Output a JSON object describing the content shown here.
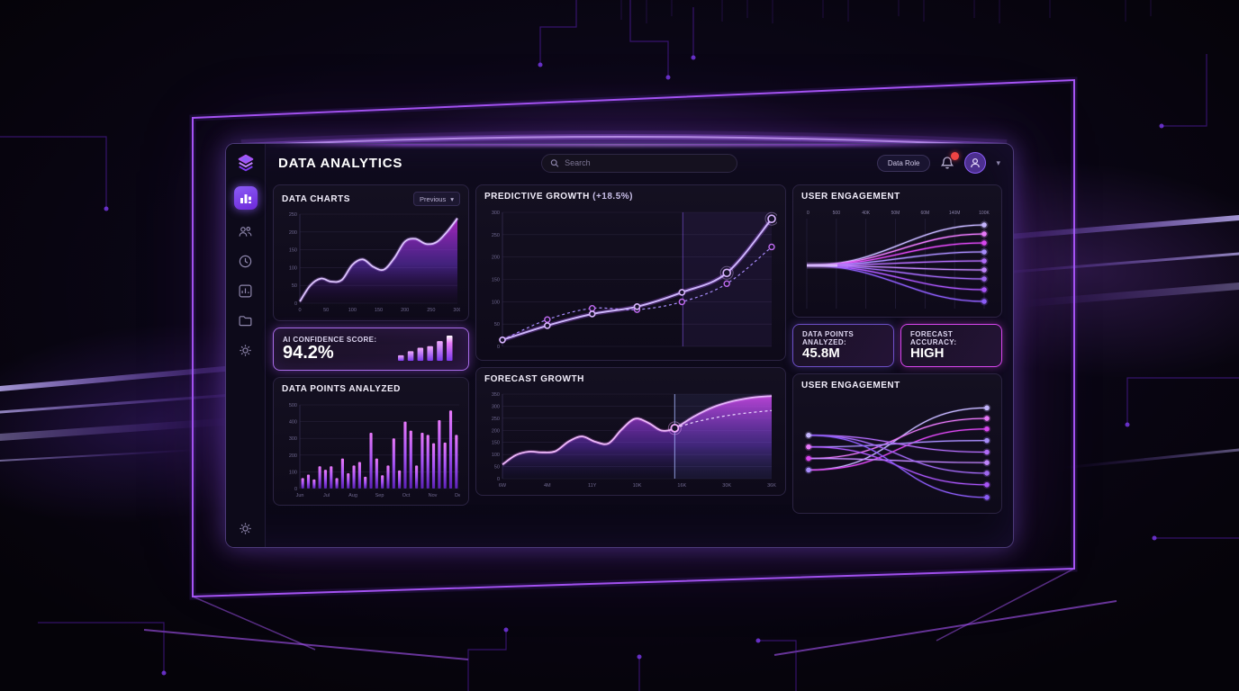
{
  "app": {
    "title": "DATA ANALYTICS"
  },
  "header": {
    "search_placeholder": "Search",
    "role_button_label": "Data Role",
    "icons": [
      "bell-icon",
      "avatar",
      "chevron-down-icon"
    ]
  },
  "sidebar": {
    "items": [
      {
        "name": "logo",
        "icon": "layers-logo-icon"
      },
      {
        "name": "dashboard",
        "icon": "bar-chart-icon",
        "active": true
      },
      {
        "name": "users",
        "icon": "users-icon"
      },
      {
        "name": "history",
        "icon": "clock-icon"
      },
      {
        "name": "reports",
        "icon": "chart-box-icon"
      },
      {
        "name": "files",
        "icon": "folder-icon"
      },
      {
        "name": "preferences",
        "icon": "gear-icon"
      },
      {
        "name": "settings",
        "icon": "gear-icon"
      }
    ]
  },
  "panels": {
    "data_charts": {
      "title": "DATA CHARTS",
      "dropdown_label": "Previous"
    },
    "ai_confidence": {
      "label": "AI CONFIDENCE SCORE:",
      "value": "94.2%"
    },
    "data_points_bar": {
      "title": "DATA POINTS ANALYZED"
    },
    "predictive": {
      "title": "PREDICTIVE GROWTH",
      "delta": "(+18.5%)"
    },
    "forecast": {
      "title": "FORECAST GROWTH"
    },
    "engagement_top": {
      "title": "USER ENGAGEMENT"
    },
    "stat_points": {
      "label": "DATA POINTS ANALYZED:",
      "value": "45.8M"
    },
    "stat_accuracy": {
      "label": "FORECAST ACCURACY:",
      "value": "HIGH"
    },
    "engagement_bottom": {
      "title": "USER ENGAGEMENT"
    }
  },
  "colors": {
    "accent": "#a855f7",
    "accent_light": "#c084fc",
    "magenta": "#d946ef",
    "violet": "#7c3aed",
    "grid": "#262038",
    "tick_text": "#6f6890",
    "badge_red": "#ef4444"
  },
  "chart_data": [
    {
      "id": "data_charts",
      "type": "area",
      "title": "DATA CHARTS",
      "y_ticks": [
        "250",
        "200",
        "150",
        "100",
        "50",
        "0"
      ],
      "x_ticks": [
        "0",
        "50",
        "100",
        "150",
        "200",
        "250",
        "300"
      ],
      "ylim": [
        0,
        260
      ],
      "values": [
        5,
        52,
        72,
        63,
        68,
        112,
        128,
        106,
        98,
        132,
        180,
        188,
        173,
        178,
        208,
        248
      ]
    },
    {
      "id": "confidence_bars",
      "type": "minibars",
      "values": [
        22,
        38,
        52,
        58,
        78,
        100
      ]
    },
    {
      "id": "points_bars",
      "type": "bar",
      "title": "DATA POINTS ANALYZED",
      "categories": [
        "Jun",
        "Jul",
        "Aug",
        "Sep",
        "Oct",
        "Nov",
        "Dec"
      ],
      "y_ticks": [
        "500",
        "400",
        "300",
        "200",
        "100",
        "0"
      ],
      "ylim": [
        0,
        600
      ],
      "values": [
        75,
        100,
        65,
        160,
        135,
        160,
        75,
        215,
        110,
        165,
        190,
        85,
        400,
        215,
        95,
        165,
        360,
        130,
        480,
        415,
        165,
        400,
        385,
        325,
        490,
        330,
        560,
        385
      ]
    },
    {
      "id": "predictive",
      "type": "line",
      "title": "PREDICTIVE GROWTH (+18.5%)",
      "y_ticks": [
        "300",
        "250",
        "200",
        "150",
        "100",
        "50",
        "0"
      ],
      "ylim": [
        0,
        310
      ],
      "divider_x": 0.67,
      "series": [
        {
          "name": "actual",
          "style": "solid",
          "values": [
            15,
            48,
            75,
            92,
            125,
            170,
            295
          ]
        },
        {
          "name": "projected",
          "style": "dashed",
          "values": [
            15,
            62,
            88,
            85,
            103,
            145,
            230
          ]
        }
      ]
    },
    {
      "id": "forecast",
      "type": "area_forecast",
      "title": "FORECAST GROWTH",
      "y_ticks": [
        "350",
        "300",
        "250",
        "200",
        "150",
        "100",
        "50",
        "0"
      ],
      "x_labels": [
        "6W",
        "4M",
        "11Y",
        "10K",
        "16K",
        "30K",
        "36K"
      ],
      "ylim": [
        0,
        360
      ],
      "divider_x": 0.64,
      "history": [
        60,
        100,
        115,
        112,
        117,
        158,
        180,
        157,
        150,
        210,
        255,
        238,
        205,
        215
      ],
      "forecast_area": [
        215,
        265,
        305,
        330,
        345,
        352
      ],
      "forecast_line": [
        215,
        240,
        258,
        272,
        282,
        290
      ]
    },
    {
      "id": "fan",
      "type": "fan",
      "title": "USER ENGAGEMENT",
      "x_labels": [
        "0",
        "500",
        "40K",
        "50M",
        "60M",
        "140M",
        "100K"
      ],
      "origin_y": 0.52,
      "ends": [
        0.07,
        0.17,
        0.27,
        0.37,
        0.47,
        0.57,
        0.67,
        0.79,
        0.92
      ],
      "palette": [
        "#c4b5fd",
        "#e879f9",
        "#d946ef",
        "#a78bfa",
        "#b06bf7",
        "#c084fc",
        "#9f67f0",
        "#a855f7",
        "#8b5cf6"
      ]
    },
    {
      "id": "cross",
      "type": "cross",
      "title": "USER ENGAGEMENT",
      "left": [
        0.34,
        0.45,
        0.56,
        0.67
      ],
      "right": [
        0.08,
        0.18,
        0.28,
        0.39,
        0.5,
        0.6,
        0.7,
        0.81,
        0.93
      ],
      "links": [
        [
          3,
          0
        ],
        [
          2,
          1
        ],
        [
          3,
          2
        ],
        [
          1,
          3
        ],
        [
          0,
          4
        ],
        [
          2,
          5
        ],
        [
          0,
          6
        ],
        [
          1,
          7
        ],
        [
          0,
          8
        ]
      ],
      "palette": [
        "#c4b5fd",
        "#e879f9",
        "#d946ef",
        "#a78bfa",
        "#b06bf7",
        "#c084fc",
        "#9f67f0",
        "#a855f7",
        "#8b5cf6"
      ]
    }
  ]
}
